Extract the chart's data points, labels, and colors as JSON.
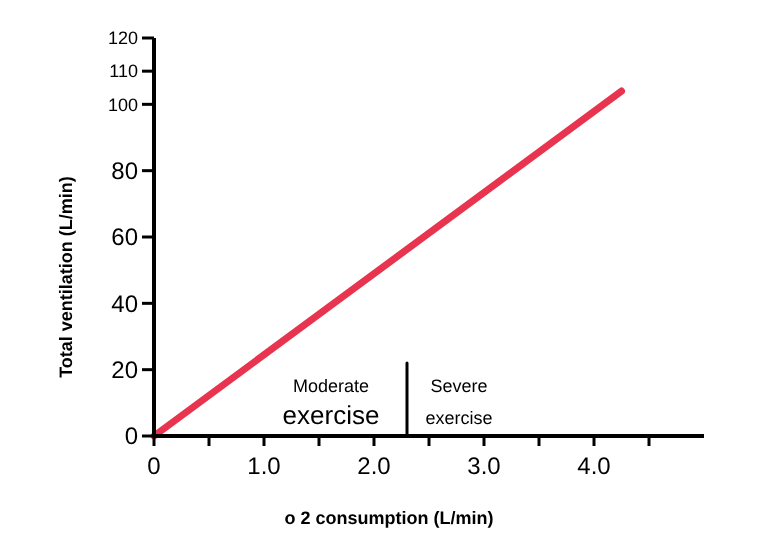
{
  "chart_data": {
    "type": "line",
    "xlabel": "o 2 consumption (L/min)",
    "ylabel": "Total ventilation (L/min)",
    "xlim": [
      0,
      5
    ],
    "xticks": [
      0,
      {
        "value": 0.5,
        "label": null
      },
      {
        "value": 1,
        "label": "1.0"
      },
      {
        "value": 1.5,
        "label": null
      },
      {
        "value": 2,
        "label": "2.0"
      },
      {
        "value": 2.5,
        "label": null
      },
      {
        "value": 3,
        "label": "3.0"
      },
      {
        "value": 3.5,
        "label": null
      },
      {
        "value": 4,
        "label": "4.0"
      },
      {
        "value": 4.5,
        "label": null
      }
    ],
    "ylim": [
      0,
      120
    ],
    "yticks": [
      0,
      20,
      40,
      60,
      80,
      100,
      110,
      120
    ],
    "series": [
      {
        "x": [
          0,
          4.25
        ],
        "values": [
          0,
          104
        ],
        "color": "#e8344e"
      },
      {
        "x": [
          2.3,
          2.3
        ],
        "values": [
          0,
          22
        ],
        "color": "#000000"
      }
    ],
    "annotations": [
      "Moderate",
      "exercise",
      "Severe",
      "exercise"
    ]
  }
}
